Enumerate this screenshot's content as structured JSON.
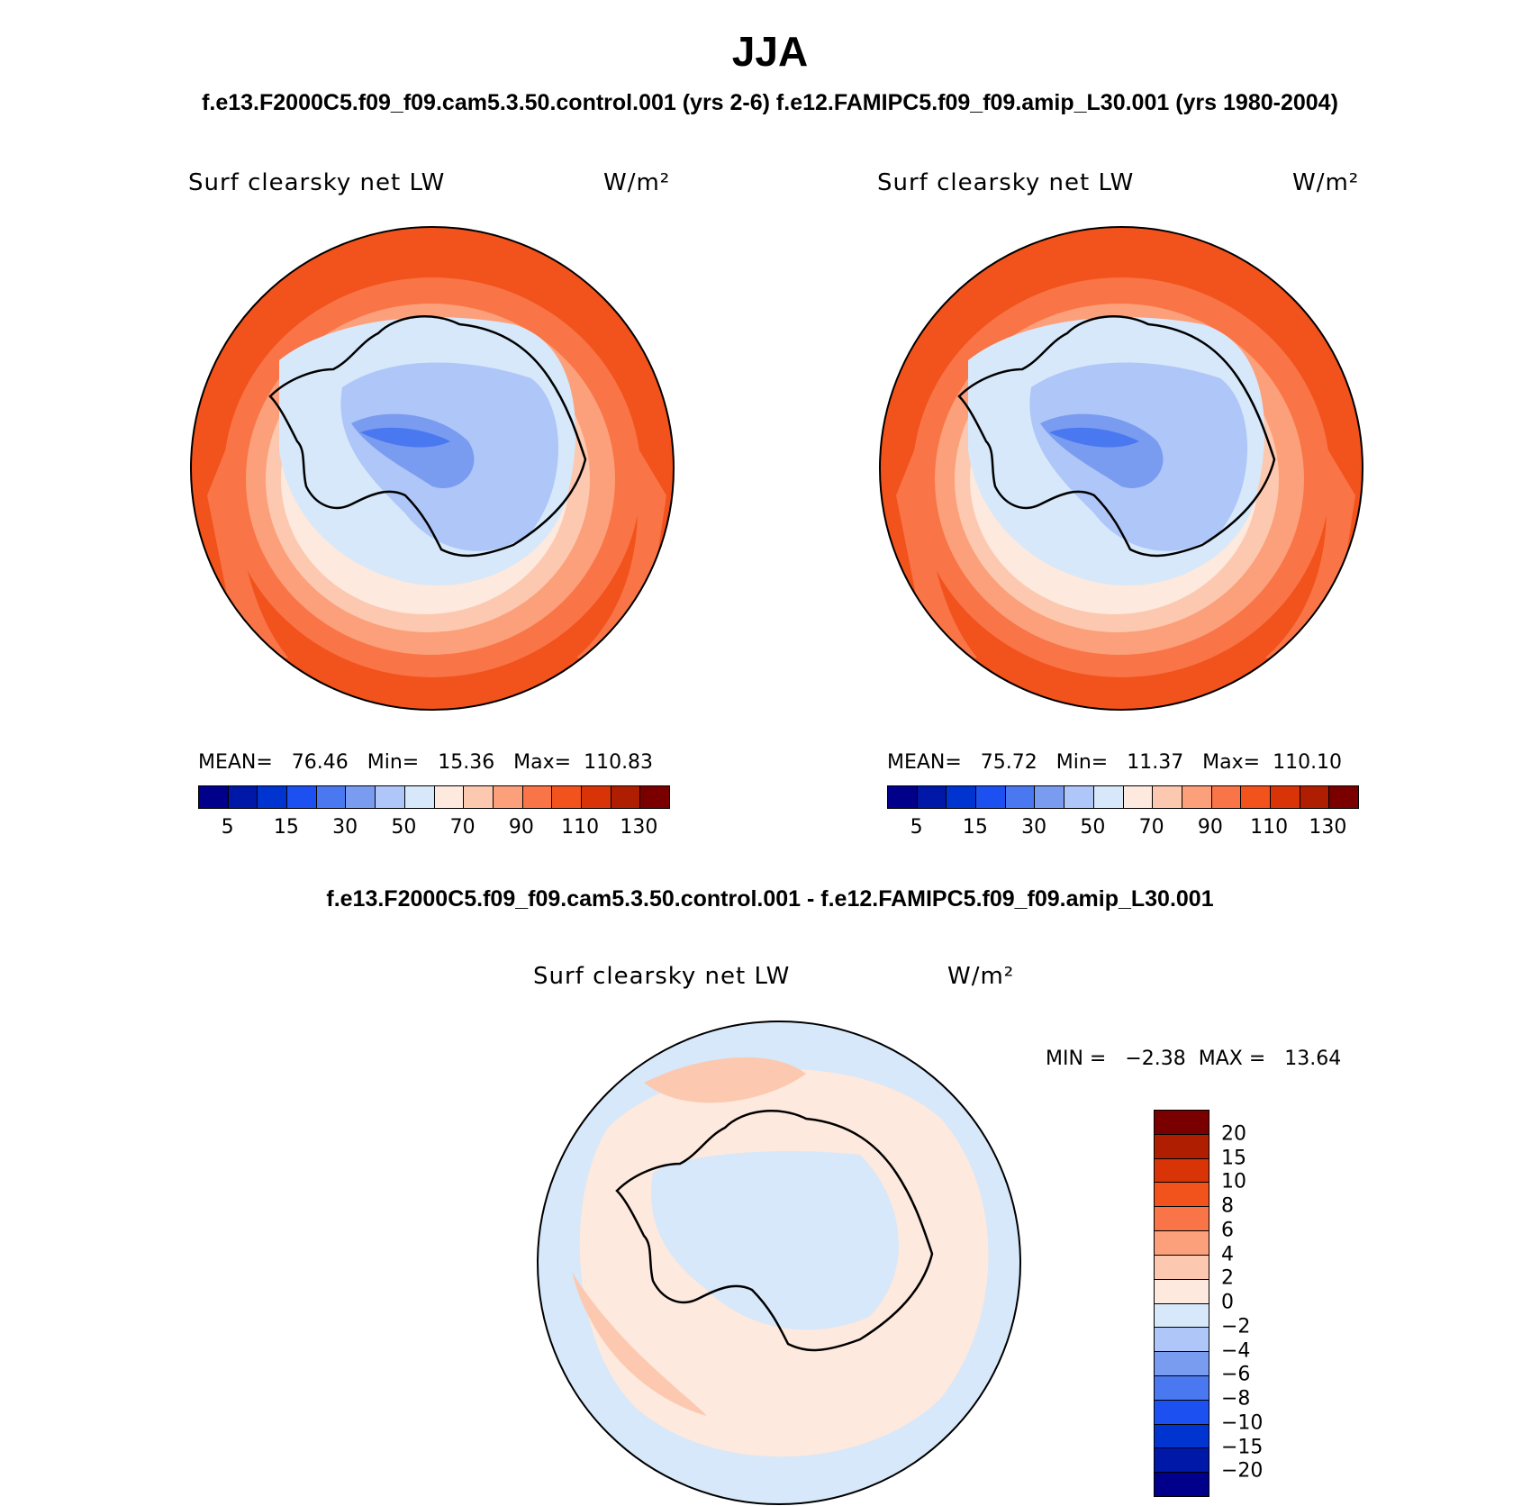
{
  "title": "JJA",
  "subtitle": "f.e13.F2000C5.f09_f09.cam5.3.50.control.001 (yrs 2-6)  f.e12.FAMIPC5.f09_f09.amip_L30.001 (yrs 1980-2004)",
  "diff_title": "f.e13.F2000C5.f09_f09.cam5.3.50.control.001 - f.e12.FAMIPC5.f09_f09.amip_L30.001",
  "panels": [
    {
      "variable": "Surf clearsky net LW",
      "units": "W/m²",
      "stats": "MEAN=   76.46   Min=   15.36   Max=  110.83",
      "mean": 76.46,
      "min": 15.36,
      "max": 110.83
    },
    {
      "variable": "Surf clearsky net LW",
      "units": "W/m²",
      "stats": "MEAN=   75.72   Min=   11.37   Max=  110.10",
      "mean": 75.72,
      "min": 11.37,
      "max": 110.1
    }
  ],
  "diff_panel": {
    "variable": "Surf clearsky net LW",
    "units": "W/m²",
    "stats": "MIN =   −2.38  MAX =   13.64",
    "min": -2.38,
    "max": 13.64
  },
  "colorbar_abs": {
    "colors": [
      "#00008a",
      "#0018a8",
      "#0034d0",
      "#1c50f0",
      "#4a78f0",
      "#7a9cf0",
      "#aec6f8",
      "#d6e8fa",
      "#fde9dd",
      "#fcc9b0",
      "#fba07a",
      "#f97446",
      "#f2521c",
      "#d83408",
      "#b01e02",
      "#7a0000"
    ],
    "ticks": [
      "5",
      "15",
      "30",
      "50",
      "70",
      "90",
      "110",
      "130"
    ]
  },
  "colorbar_diff": {
    "colors": [
      "#7a0000",
      "#b01e02",
      "#d83408",
      "#f2521c",
      "#f97446",
      "#fba07a",
      "#fcc9b0",
      "#fde9dd",
      "#d6e8fa",
      "#aec6f8",
      "#7a9cf0",
      "#4a78f0",
      "#1c50f0",
      "#0034d0",
      "#0018a8",
      "#00008a"
    ],
    "ticks": [
      "20",
      "15",
      "10",
      "8",
      "6",
      "4",
      "2",
      "0",
      "−2",
      "−4",
      "−6",
      "−8",
      "−10",
      "−15",
      "−20"
    ]
  }
}
